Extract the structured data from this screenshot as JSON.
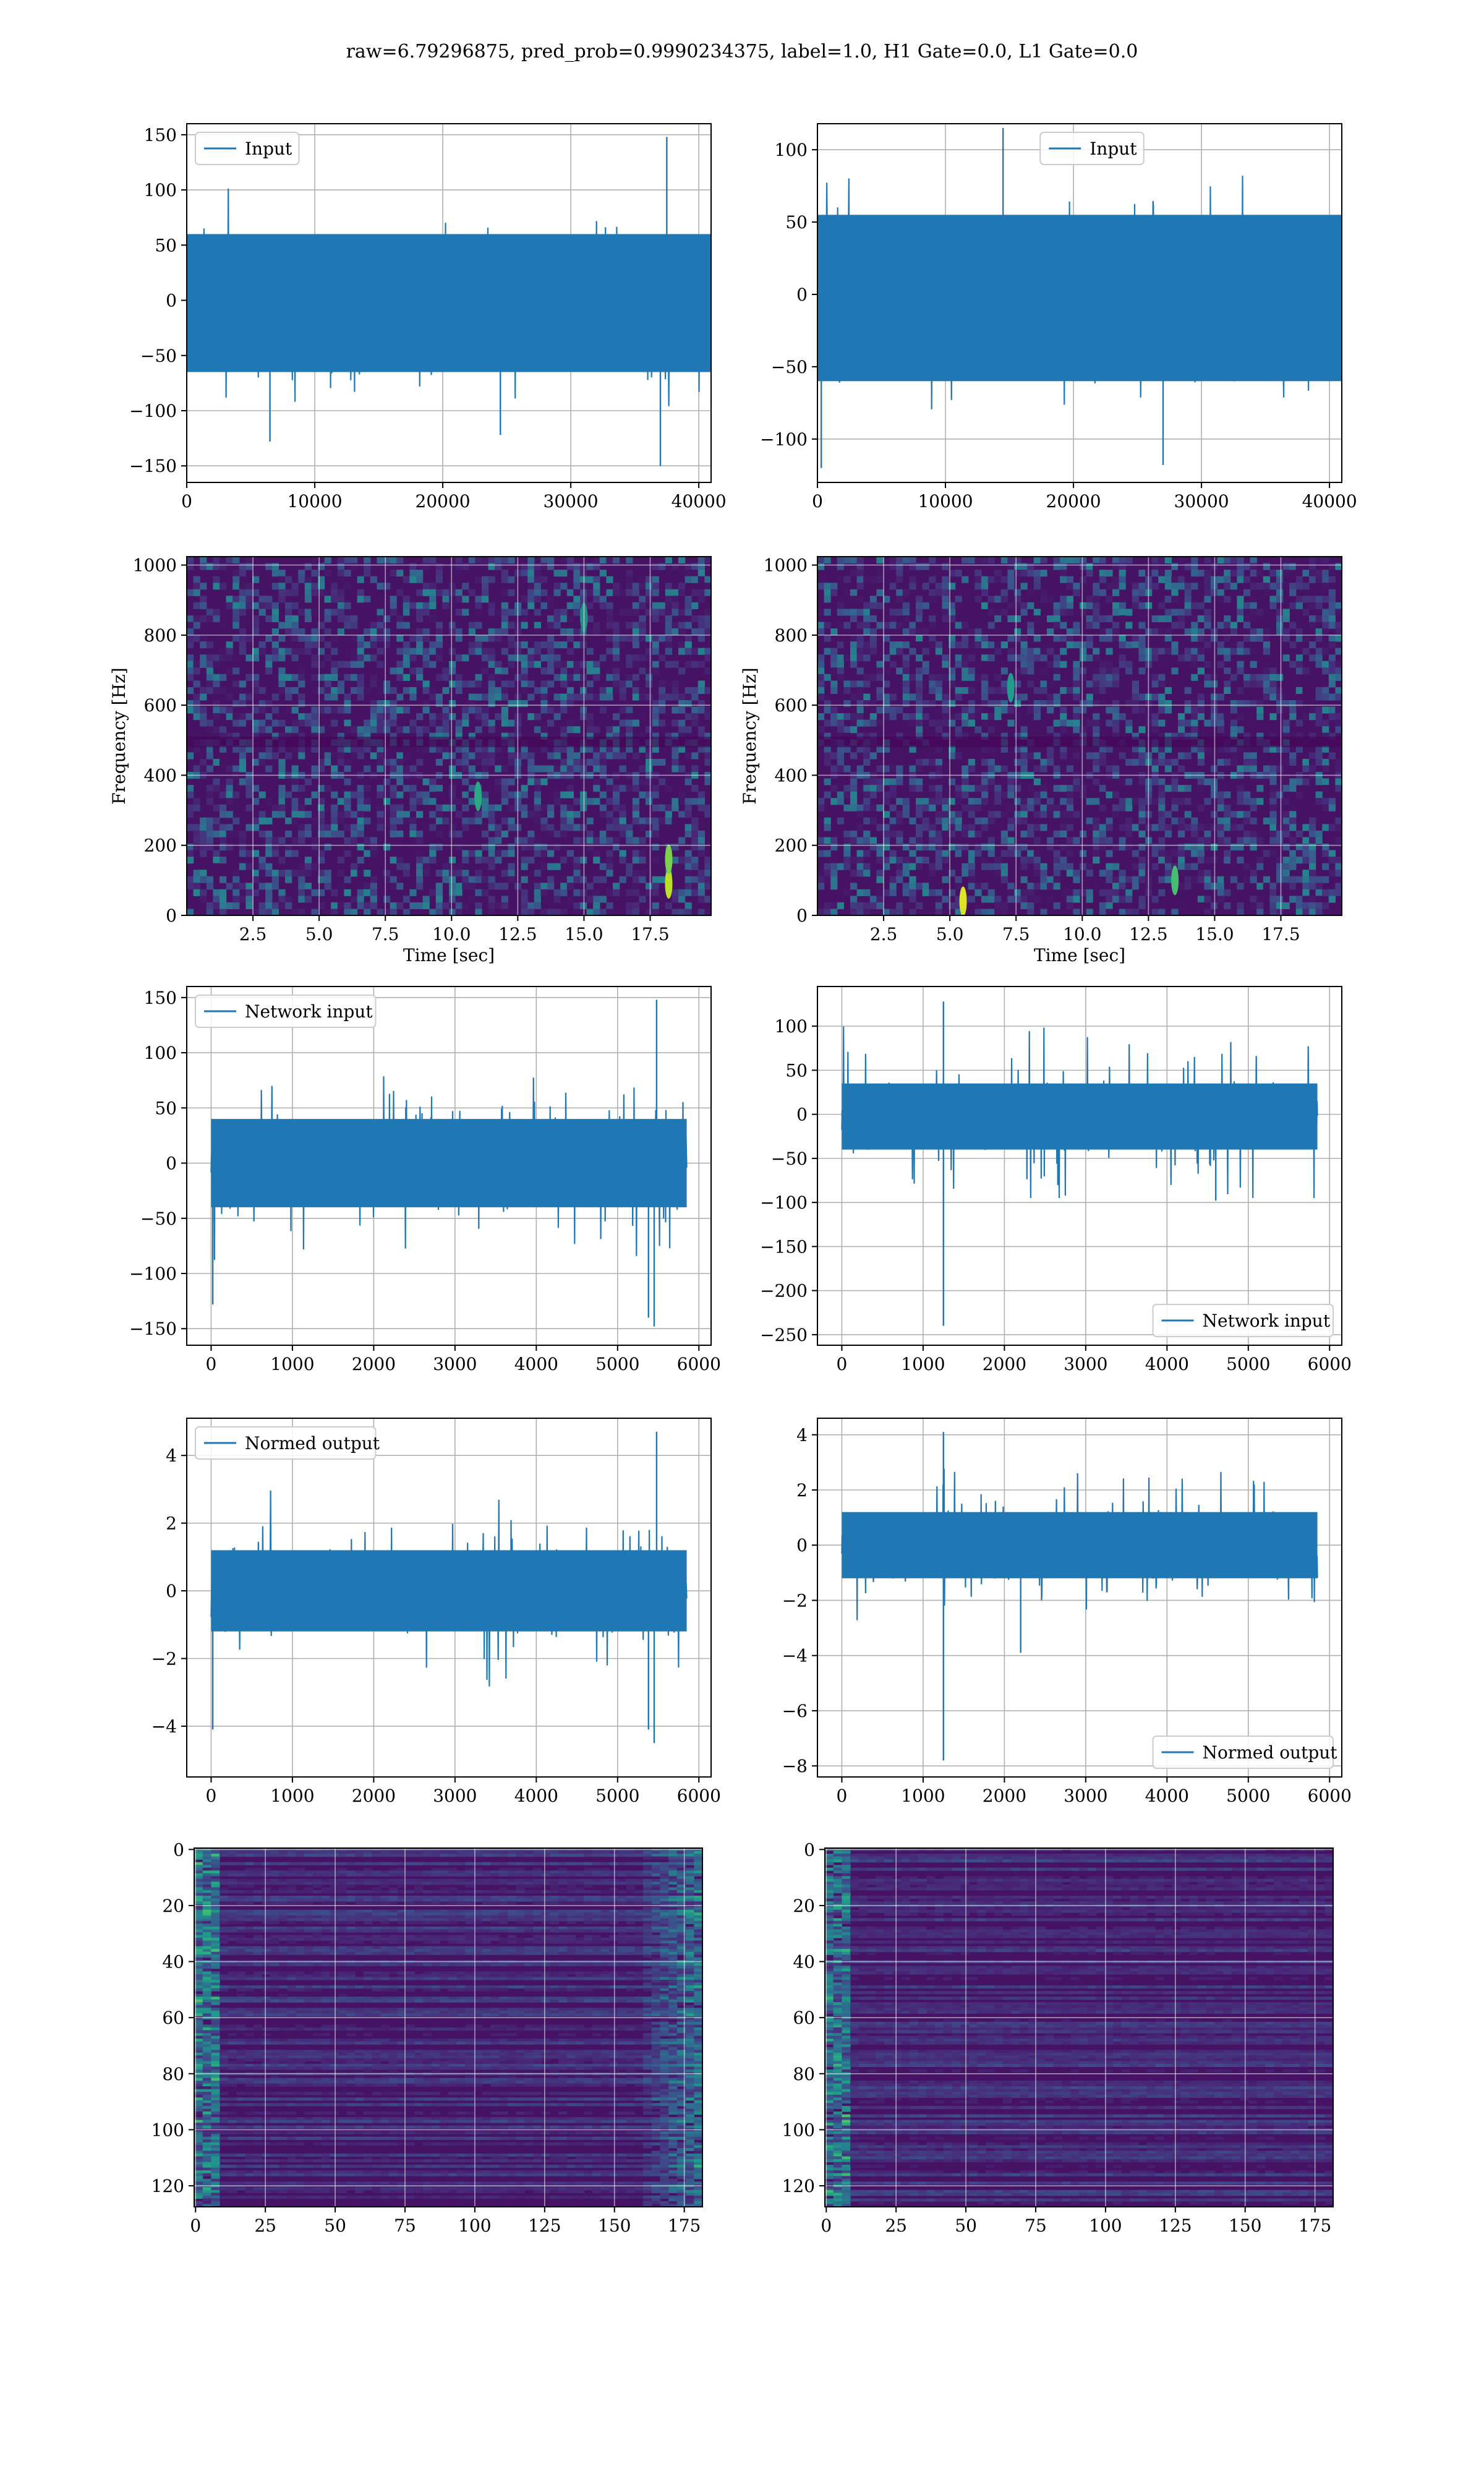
{
  "title": "raw=6.79296875, pred_prob=0.9990234375, label=1.0, H1 Gate=0.0, L1 Gate=0.0",
  "colors": {
    "line": "#1f77b4",
    "grid": "#b0b0b0",
    "viridis_low": "#440154",
    "viridis_high": "#fde725"
  },
  "chart_data": [
    {
      "id": "input-h1",
      "type": "line",
      "legend": "Input",
      "legend_loc": "upper-left",
      "xlim": [
        0,
        40960
      ],
      "ylim": [
        -165,
        160
      ],
      "xticks": [
        0,
        10000,
        20000,
        30000,
        40000
      ],
      "yticks": [
        -150,
        -100,
        -50,
        0,
        50,
        100,
        150
      ],
      "grid": true,
      "band": [
        -65,
        60
      ],
      "envelope": [
        -110,
        105
      ],
      "spikes": [
        [
          37500,
          148
        ],
        [
          37000,
          -150
        ],
        [
          6500,
          -128
        ],
        [
          24500,
          -122
        ]
      ]
    },
    {
      "id": "input-l1",
      "type": "line",
      "legend": "Input",
      "legend_loc": "upper-center",
      "xlim": [
        0,
        40960
      ],
      "ylim": [
        -130,
        118
      ],
      "xticks": [
        0,
        10000,
        20000,
        30000,
        40000
      ],
      "yticks": [
        -100,
        -50,
        0,
        50,
        100
      ],
      "grid": true,
      "band": [
        -60,
        55
      ],
      "envelope": [
        -100,
        100
      ],
      "spikes": [
        [
          300,
          -120
        ],
        [
          14500,
          115
        ],
        [
          27000,
          -118
        ]
      ]
    },
    {
      "id": "spectrogram-h1",
      "type": "heatmap",
      "xlabel": "Time [sec]",
      "ylabel": "Frequency [Hz]",
      "xlim": [
        0,
        19.8
      ],
      "ylim": [
        0,
        1024
      ],
      "xticks": [
        2.5,
        5.0,
        7.5,
        10.0,
        12.5,
        15.0,
        17.5
      ],
      "yticks": [
        0,
        200,
        400,
        600,
        800,
        1000
      ],
      "grid": true,
      "hotspots": [
        [
          18.2,
          90,
          0.9
        ],
        [
          18.2,
          160,
          0.8
        ],
        [
          11.0,
          340,
          0.6
        ],
        [
          15.0,
          850,
          0.5
        ]
      ]
    },
    {
      "id": "spectrogram-l1",
      "type": "heatmap",
      "xlabel": "Time [sec]",
      "ylabel": "Frequency [Hz]",
      "xlim": [
        0,
        19.8
      ],
      "ylim": [
        0,
        1024
      ],
      "xticks": [
        2.5,
        5.0,
        7.5,
        10.0,
        12.5,
        15.0,
        17.5
      ],
      "yticks": [
        0,
        200,
        400,
        600,
        800,
        1000
      ],
      "grid": true,
      "hotspots": [
        [
          5.5,
          40,
          0.95
        ],
        [
          13.5,
          100,
          0.7
        ],
        [
          7.3,
          650,
          0.55
        ]
      ]
    },
    {
      "id": "network-input-h1",
      "type": "line",
      "legend": "Network input",
      "legend_loc": "upper-left",
      "xlim": [
        -300,
        6150
      ],
      "ylim": [
        -165,
        160
      ],
      "xticks": [
        0,
        1000,
        2000,
        3000,
        4000,
        5000,
        6000
      ],
      "yticks": [
        -150,
        -100,
        -50,
        0,
        50,
        100,
        150
      ],
      "grid": true,
      "band": [
        -40,
        40
      ],
      "envelope": [
        -100,
        100
      ],
      "spikes": [
        [
          5480,
          148
        ],
        [
          5450,
          -148
        ],
        [
          5380,
          -140
        ],
        [
          20,
          -128
        ]
      ]
    },
    {
      "id": "network-input-l1",
      "type": "line",
      "legend": "Network input",
      "legend_loc": "lower-right",
      "xlim": [
        -300,
        6150
      ],
      "ylim": [
        -262,
        145
      ],
      "xticks": [
        0,
        1000,
        2000,
        3000,
        4000,
        5000,
        6000
      ],
      "yticks": [
        -250,
        -200,
        -150,
        -100,
        -50,
        0,
        50,
        100
      ],
      "grid": true,
      "band": [
        -40,
        35
      ],
      "envelope": [
        -95,
        110
      ],
      "spikes": [
        [
          1250,
          -240
        ],
        [
          1250,
          128
        ],
        [
          4600,
          -98
        ]
      ]
    },
    {
      "id": "normed-output-h1",
      "type": "line",
      "legend": "Normed output",
      "legend_loc": "upper-left",
      "xlim": [
        -300,
        6150
      ],
      "ylim": [
        -5.5,
        5.1
      ],
      "xticks": [
        0,
        1000,
        2000,
        3000,
        4000,
        5000,
        6000
      ],
      "yticks": [
        -4,
        -2,
        0,
        2,
        4
      ],
      "grid": true,
      "band": [
        -1.2,
        1.2
      ],
      "envelope": [
        -3.0,
        3.2
      ],
      "spikes": [
        [
          5480,
          4.7
        ],
        [
          5450,
          -4.5
        ],
        [
          5380,
          -4.1
        ],
        [
          20,
          -4.1
        ]
      ]
    },
    {
      "id": "normed-output-l1",
      "type": "line",
      "legend": "Normed output",
      "legend_loc": "lower-right",
      "xlim": [
        -300,
        6150
      ],
      "ylim": [
        -8.4,
        4.6
      ],
      "xticks": [
        0,
        1000,
        2000,
        3000,
        4000,
        5000,
        6000
      ],
      "yticks": [
        -8,
        -6,
        -4,
        -2,
        0,
        2,
        4
      ],
      "grid": true,
      "band": [
        -1.2,
        1.2
      ],
      "envelope": [
        -2.8,
        3.0
      ],
      "spikes": [
        [
          1250,
          -7.8
        ],
        [
          1250,
          4.1
        ],
        [
          2200,
          -3.9
        ]
      ]
    },
    {
      "id": "feature-map-h1",
      "type": "heatmap",
      "xlim": [
        -0.5,
        181.5
      ],
      "ylim": [
        -0.5,
        127.5
      ],
      "y_inverted": true,
      "xticks": [
        0,
        25,
        50,
        75,
        100,
        125,
        150,
        175
      ],
      "yticks": [
        0,
        20,
        40,
        60,
        80,
        100,
        120
      ],
      "grid": true,
      "hot_edge": "both"
    },
    {
      "id": "feature-map-l1",
      "type": "heatmap",
      "xlim": [
        -0.5,
        181.5
      ],
      "ylim": [
        -0.5,
        127.5
      ],
      "y_inverted": true,
      "xticks": [
        0,
        25,
        50,
        75,
        100,
        125,
        150,
        175
      ],
      "yticks": [
        0,
        20,
        40,
        60,
        80,
        100,
        120
      ],
      "grid": true,
      "hot_edge": "left"
    }
  ]
}
